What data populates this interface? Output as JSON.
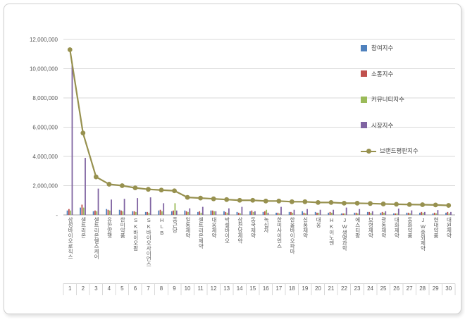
{
  "chart_data": {
    "type": "bar",
    "subtype": "grouped-bars-with-line-overlay",
    "title": "",
    "xlabel": "",
    "ylabel": "",
    "ylim": [
      0,
      12000000
    ],
    "ytick_step": 2000000,
    "ytick_labels": [
      "-",
      "2,000,000",
      "4,000,000",
      "6,000,000",
      "8,000,000",
      "10,000,000",
      "12,000,000"
    ],
    "grid": "horizontal",
    "legend_position": "right-inside",
    "categories": [
      "삼성바이오로직스",
      "셀트리온",
      "셀트리온헬스케어",
      "유한양행",
      "한미약품",
      "SK바이오팜",
      "SK바이오사이언스",
      "HLB",
      "종근당",
      "일동제약",
      "셀트리온제약",
      "대웅제약",
      "박셀바이오",
      "삼천당제약",
      "동국제약",
      "녹십자",
      "한미사이언스",
      "한올바이오파마",
      "신풍제약",
      "대웅",
      "HK이노엔",
      "JW생명과학",
      "에스티팜",
      "보령제약",
      "광동제약",
      "대화제약",
      "동화약품",
      "JW중외제약",
      "현대약품",
      "대원제약"
    ],
    "ranks": [
      "1",
      "2",
      "3",
      "4",
      "5",
      "6",
      "7",
      "8",
      "9",
      "10",
      "11",
      "12",
      "13",
      "14",
      "15",
      "16",
      "17",
      "18",
      "19",
      "20",
      "21",
      "22",
      "23",
      "24",
      "25",
      "26",
      "27",
      "28",
      "29",
      "30"
    ],
    "series": [
      {
        "name": "참여지수",
        "type": "bar",
        "color": "#4F81BD",
        "values": [
          300000,
          500000,
          250000,
          400000,
          350000,
          250000,
          200000,
          300000,
          250000,
          300000,
          200000,
          300000,
          250000,
          200000,
          250000,
          200000,
          150000,
          200000,
          250000,
          200000,
          150000,
          100000,
          150000,
          200000,
          150000,
          100000,
          150000,
          150000,
          100000,
          150000
        ]
      },
      {
        "name": "소통지수",
        "type": "bar",
        "color": "#C0504D",
        "values": [
          400000,
          700000,
          300000,
          350000,
          300000,
          250000,
          200000,
          350000,
          300000,
          250000,
          250000,
          300000,
          200000,
          150000,
          300000,
          250000,
          150000,
          200000,
          150000,
          150000,
          200000,
          100000,
          150000,
          200000,
          200000,
          100000,
          150000,
          200000,
          150000,
          200000
        ]
      },
      {
        "name": "커뮤니티지수",
        "type": "bar",
        "color": "#9BBB59",
        "values": [
          300000,
          500000,
          250000,
          300000,
          250000,
          200000,
          150000,
          250000,
          800000,
          200000,
          150000,
          250000,
          150000,
          100000,
          200000,
          350000,
          100000,
          150000,
          100000,
          150000,
          150000,
          100000,
          100000,
          130000,
          150000,
          100000,
          100000,
          150000,
          100000,
          100000
        ]
      },
      {
        "name": "시장지수",
        "type": "bar",
        "color": "#8064A2",
        "values": [
          10300000,
          3900000,
          1800000,
          1050000,
          1100000,
          1150000,
          1200000,
          800000,
          300000,
          450000,
          550000,
          250000,
          450000,
          550000,
          250000,
          150000,
          550000,
          350000,
          400000,
          350000,
          350000,
          500000,
          400000,
          250000,
          250000,
          430000,
          310000,
          200000,
          330000,
          200000
        ]
      },
      {
        "name": "브랜드평판지수",
        "type": "line",
        "color": "#97914F",
        "values": [
          11300000,
          5600000,
          2600000,
          2100000,
          2000000,
          1850000,
          1750000,
          1700000,
          1650000,
          1200000,
          1150000,
          1100000,
          1050000,
          1000000,
          1000000,
          950000,
          950000,
          900000,
          900000,
          850000,
          850000,
          800000,
          800000,
          780000,
          750000,
          730000,
          710000,
          700000,
          680000,
          650000
        ]
      }
    ]
  },
  "legend": {
    "items": [
      {
        "label": "참여지수",
        "color": "#4F81BD",
        "kind": "bar"
      },
      {
        "label": "소통지수",
        "color": "#C0504D",
        "kind": "bar"
      },
      {
        "label": "커뮤니티지수",
        "color": "#9BBB59",
        "kind": "bar"
      },
      {
        "label": "시장지수",
        "color": "#8064A2",
        "kind": "bar"
      },
      {
        "label": "브랜드평판지수",
        "color": "#97914F",
        "kind": "line"
      }
    ]
  },
  "colors": {
    "grid": "#D9D9D9",
    "axis": "#A6A6A6",
    "tick_text": "#595959",
    "card_border": "#CFCFCF"
  }
}
